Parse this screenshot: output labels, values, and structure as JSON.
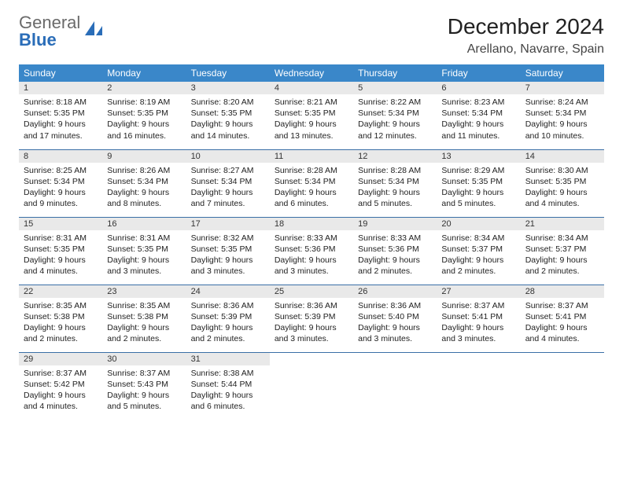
{
  "logo": {
    "word1": "General",
    "word2": "Blue",
    "word1_color": "#6a6a6a",
    "word2_color": "#2a6db8"
  },
  "title": "December 2024",
  "location": "Arellano, Navarre, Spain",
  "header_bg": "#3a87c9",
  "header_fg": "#ffffff",
  "daynum_bg": "#e9e9e9",
  "row_border": "#3a6fa6",
  "weekdays": [
    "Sunday",
    "Monday",
    "Tuesday",
    "Wednesday",
    "Thursday",
    "Friday",
    "Saturday"
  ],
  "cell_fontsize": 10.5,
  "daynum_fontsize": 11,
  "header_fontsize": 12,
  "title_fontsize": 28,
  "location_fontsize": 16,
  "weeks": [
    [
      {
        "n": "1",
        "sunrise": "8:18 AM",
        "sunset": "5:35 PM",
        "daylight": "9 hours and 17 minutes."
      },
      {
        "n": "2",
        "sunrise": "8:19 AM",
        "sunset": "5:35 PM",
        "daylight": "9 hours and 16 minutes."
      },
      {
        "n": "3",
        "sunrise": "8:20 AM",
        "sunset": "5:35 PM",
        "daylight": "9 hours and 14 minutes."
      },
      {
        "n": "4",
        "sunrise": "8:21 AM",
        "sunset": "5:35 PM",
        "daylight": "9 hours and 13 minutes."
      },
      {
        "n": "5",
        "sunrise": "8:22 AM",
        "sunset": "5:34 PM",
        "daylight": "9 hours and 12 minutes."
      },
      {
        "n": "6",
        "sunrise": "8:23 AM",
        "sunset": "5:34 PM",
        "daylight": "9 hours and 11 minutes."
      },
      {
        "n": "7",
        "sunrise": "8:24 AM",
        "sunset": "5:34 PM",
        "daylight": "9 hours and 10 minutes."
      }
    ],
    [
      {
        "n": "8",
        "sunrise": "8:25 AM",
        "sunset": "5:34 PM",
        "daylight": "9 hours and 9 minutes."
      },
      {
        "n": "9",
        "sunrise": "8:26 AM",
        "sunset": "5:34 PM",
        "daylight": "9 hours and 8 minutes."
      },
      {
        "n": "10",
        "sunrise": "8:27 AM",
        "sunset": "5:34 PM",
        "daylight": "9 hours and 7 minutes."
      },
      {
        "n": "11",
        "sunrise": "8:28 AM",
        "sunset": "5:34 PM",
        "daylight": "9 hours and 6 minutes."
      },
      {
        "n": "12",
        "sunrise": "8:28 AM",
        "sunset": "5:34 PM",
        "daylight": "9 hours and 5 minutes."
      },
      {
        "n": "13",
        "sunrise": "8:29 AM",
        "sunset": "5:35 PM",
        "daylight": "9 hours and 5 minutes."
      },
      {
        "n": "14",
        "sunrise": "8:30 AM",
        "sunset": "5:35 PM",
        "daylight": "9 hours and 4 minutes."
      }
    ],
    [
      {
        "n": "15",
        "sunrise": "8:31 AM",
        "sunset": "5:35 PM",
        "daylight": "9 hours and 4 minutes."
      },
      {
        "n": "16",
        "sunrise": "8:31 AM",
        "sunset": "5:35 PM",
        "daylight": "9 hours and 3 minutes."
      },
      {
        "n": "17",
        "sunrise": "8:32 AM",
        "sunset": "5:35 PM",
        "daylight": "9 hours and 3 minutes."
      },
      {
        "n": "18",
        "sunrise": "8:33 AM",
        "sunset": "5:36 PM",
        "daylight": "9 hours and 3 minutes."
      },
      {
        "n": "19",
        "sunrise": "8:33 AM",
        "sunset": "5:36 PM",
        "daylight": "9 hours and 2 minutes."
      },
      {
        "n": "20",
        "sunrise": "8:34 AM",
        "sunset": "5:37 PM",
        "daylight": "9 hours and 2 minutes."
      },
      {
        "n": "21",
        "sunrise": "8:34 AM",
        "sunset": "5:37 PM",
        "daylight": "9 hours and 2 minutes."
      }
    ],
    [
      {
        "n": "22",
        "sunrise": "8:35 AM",
        "sunset": "5:38 PM",
        "daylight": "9 hours and 2 minutes."
      },
      {
        "n": "23",
        "sunrise": "8:35 AM",
        "sunset": "5:38 PM",
        "daylight": "9 hours and 2 minutes."
      },
      {
        "n": "24",
        "sunrise": "8:36 AM",
        "sunset": "5:39 PM",
        "daylight": "9 hours and 2 minutes."
      },
      {
        "n": "25",
        "sunrise": "8:36 AM",
        "sunset": "5:39 PM",
        "daylight": "9 hours and 3 minutes."
      },
      {
        "n": "26",
        "sunrise": "8:36 AM",
        "sunset": "5:40 PM",
        "daylight": "9 hours and 3 minutes."
      },
      {
        "n": "27",
        "sunrise": "8:37 AM",
        "sunset": "5:41 PM",
        "daylight": "9 hours and 3 minutes."
      },
      {
        "n": "28",
        "sunrise": "8:37 AM",
        "sunset": "5:41 PM",
        "daylight": "9 hours and 4 minutes."
      }
    ],
    [
      {
        "n": "29",
        "sunrise": "8:37 AM",
        "sunset": "5:42 PM",
        "daylight": "9 hours and 4 minutes."
      },
      {
        "n": "30",
        "sunrise": "8:37 AM",
        "sunset": "5:43 PM",
        "daylight": "9 hours and 5 minutes."
      },
      {
        "n": "31",
        "sunrise": "8:38 AM",
        "sunset": "5:44 PM",
        "daylight": "9 hours and 6 minutes."
      },
      null,
      null,
      null,
      null
    ]
  ],
  "labels": {
    "sunrise": "Sunrise:",
    "sunset": "Sunset:",
    "daylight": "Daylight:"
  }
}
